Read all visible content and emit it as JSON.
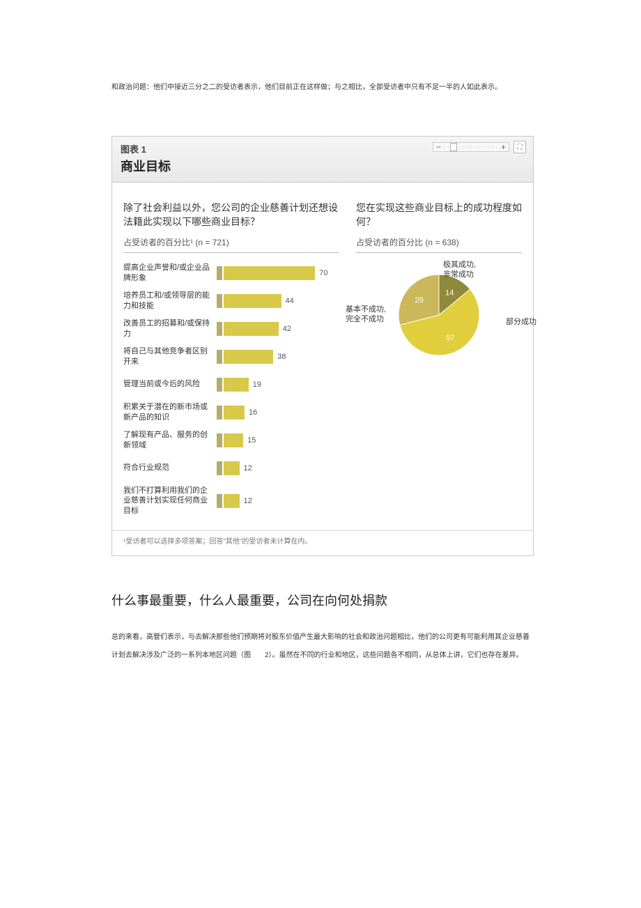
{
  "intro_paragraph": "和政治问题：他们中接近三分之二的受访者表示，他们目前正在这样做；与之相比，全部受访者中只有不足一半的人如此表示。",
  "chart": {
    "label_num": "图表 1",
    "title": "商业目标",
    "left_question": "除了社会利益以外，您公司的企业慈善计划还想设法籍此实现以下哪些商业目标？",
    "left_sub": "占受访者的百分比¹ (n = 721)",
    "right_question": "您在实现这些商业目标上的成功程度如何？",
    "right_sub": "占受访者的百分比 (n = 638)",
    "bars": [
      {
        "label": "提高企业声誉和/或企业品牌形象",
        "value": 70
      },
      {
        "label": "培养员工和/或领导层的能力和技能",
        "value": 44
      },
      {
        "label": "改善员工的招募和/或保持力",
        "value": 42
      },
      {
        "label": "将自己与其他竞争者区别开来",
        "value": 38
      },
      {
        "label": "管理当前或今后的风险",
        "value": 19
      },
      {
        "label": "积累关于潜在的新市场或新产品的知识",
        "value": 16
      },
      {
        "label": "了解现有产品、服务的创新领域",
        "value": 15
      },
      {
        "label": "符合行业规范",
        "value": 12
      },
      {
        "label": "我们不打算利用我们的企业慈善计划实现任何商业目标",
        "value": 12
      }
    ],
    "bar_max": 80,
    "bar_color": "#d9c94b",
    "bar_tick_color": "#b6ab6b",
    "pie": {
      "slices": [
        {
          "label": "极其成功,\n非常成功",
          "value": 14,
          "color": "#8f8a3a"
        },
        {
          "label": "部分成功",
          "value": 57,
          "color": "#e1ce3d"
        },
        {
          "label": "基本不成功,\n完全不成功",
          "value": 29,
          "color": "#cbb85a"
        }
      ]
    },
    "footnote": "¹受访者可以选择多项答案；回答\"其他\"的受访者未计算在内。"
  },
  "section_heading": "什么事最重要，什么人最重要，公司在向何处捐款",
  "body_paragraph": "总的来看，高管们表示，与去解决那些他们预期将对股东价值产生最大影响的社会和政治问题相比，他们的公司更有可能利用其企业慈善计划去解决涉及广泛的一系列本地区问题（图　　2）。虽然在不同的行业和地区，这些问题各不相同，从总体上讲，它们也存在差异。"
}
